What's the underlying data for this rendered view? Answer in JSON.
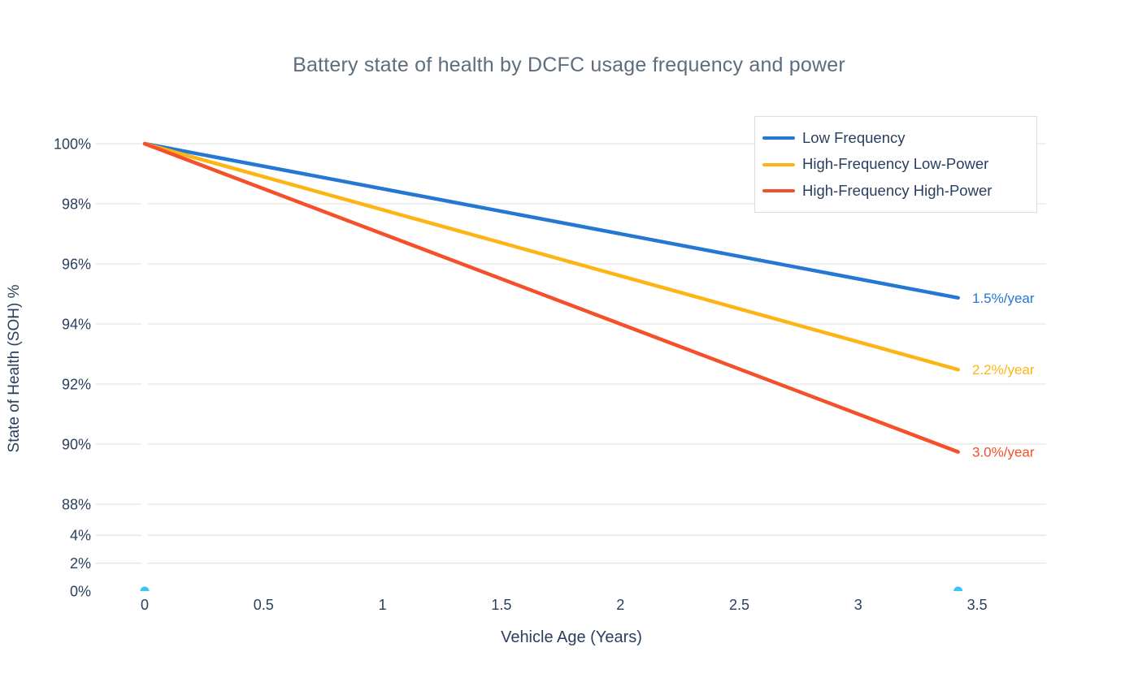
{
  "colors": {
    "title_text": "#5d6d7e",
    "axis_text": "#2a3f5f",
    "gridline": "#e5e5e5",
    "legend_border": "#dcdcdc",
    "zeroline": "#ffffff",
    "marker_cyan": "#38c6f4"
  },
  "chart_data": {
    "type": "line",
    "title": "Battery state of health by DCFC usage frequency and power",
    "xlabel": "Vehicle Age (Years)",
    "ylabel": "State of Health (SOH) %",
    "x_ticks": [
      0,
      0.5,
      1,
      1.5,
      2,
      2.5,
      3,
      3.5
    ],
    "y_ticks_main_pct": [
      100,
      98,
      96,
      94,
      92,
      90,
      88
    ],
    "y_ticks_lower_pct": [
      4,
      2,
      0
    ],
    "grid_values_pct": [
      100,
      98,
      96,
      94,
      92,
      90,
      88,
      4,
      2
    ],
    "x_range_years": [
      0,
      3.42
    ],
    "legend_position": "top-right",
    "grid": "horizontal-only",
    "series": [
      {
        "name": "Low Frequency",
        "color": "#2577d4",
        "decline_rate_pct_per_year": 1.5,
        "annotation": "1.5%/year",
        "x": [
          0,
          3.42
        ],
        "y": [
          100,
          94.87
        ]
      },
      {
        "name": "High-Frequency Low-Power",
        "color": "#fdb515",
        "decline_rate_pct_per_year": 2.2,
        "annotation": "2.2%/year",
        "x": [
          0,
          3.42
        ],
        "y": [
          100,
          92.48
        ]
      },
      {
        "name": "High-Frequency High-Power",
        "color": "#f4502a",
        "decline_rate_pct_per_year": 3.0,
        "annotation": "3.0%/year",
        "x": [
          0,
          3.42
        ],
        "y": [
          100,
          89.74
        ]
      }
    ],
    "baseline_markers": {
      "color": "#38c6f4",
      "points": [
        {
          "x": 0,
          "y": 0
        },
        {
          "x": 3.42,
          "y": 0
        }
      ]
    }
  }
}
